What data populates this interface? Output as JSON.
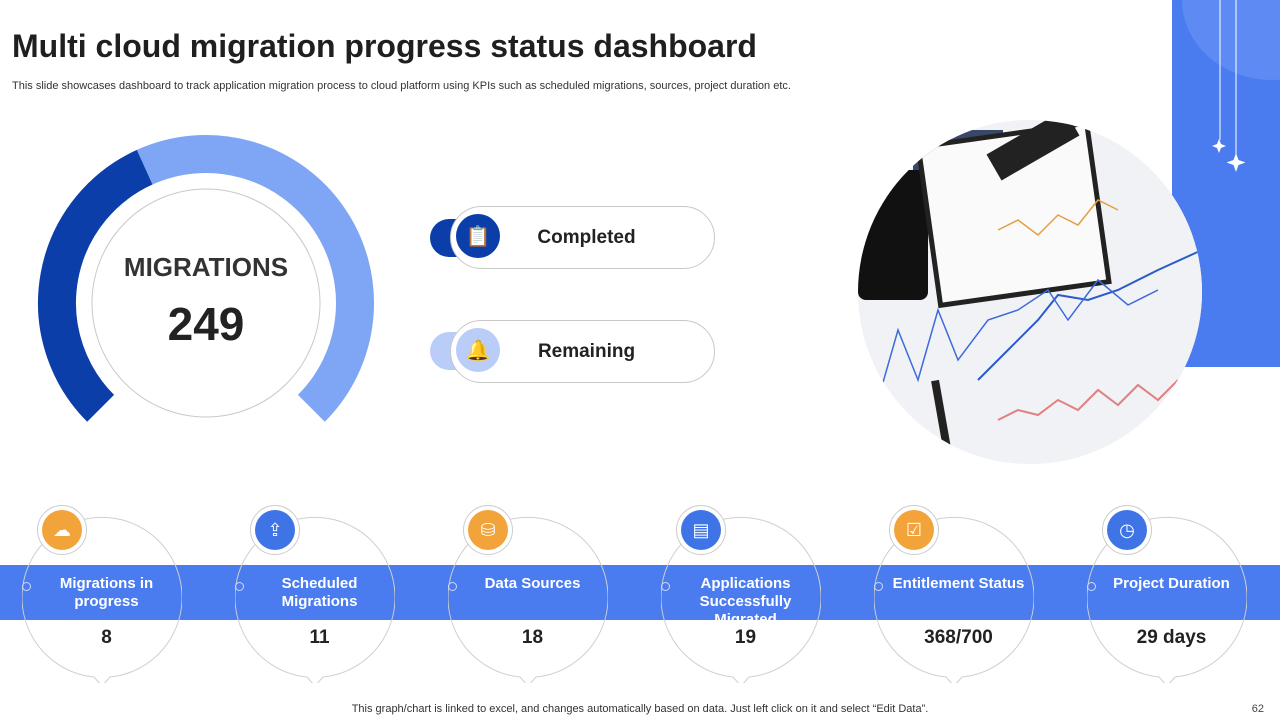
{
  "header": {
    "title": "Multi cloud migration progress status dashboard",
    "subtitle": "This slide showcases dashboard to track application migration process to cloud platform using KPIs such as scheduled migrations, sources, project duration etc."
  },
  "gauge": {
    "label": "MIGRATIONS",
    "total": "249",
    "completed_fraction": 0.41,
    "colors": {
      "completed": "#0b3ea8",
      "remaining": "#7fa5f5"
    }
  },
  "legend": [
    {
      "label": "Completed",
      "icon": "document-check-icon",
      "color": "#0b3ea8"
    },
    {
      "label": "Remaining",
      "icon": "bell-chat-icon",
      "color": "#b9cdf8"
    }
  ],
  "kpis": [
    {
      "label": "Migrations in progress",
      "value": "8",
      "icon": "cloud-laptop-icon",
      "color": "#f2a33a"
    },
    {
      "label": "Scheduled Migrations",
      "value": "11",
      "icon": "cloud-upload-icon",
      "color": "#3f74e6"
    },
    {
      "label": "Data Sources",
      "value": "18",
      "icon": "database-gear-icon",
      "color": "#f2a33a"
    },
    {
      "label": "Applications Successfully Migrated",
      "value": "19",
      "icon": "app-window-icon",
      "color": "#3f74e6"
    },
    {
      "label": "Entitlement Status",
      "value": "368/700",
      "icon": "checklist-icon",
      "color": "#f2a33a"
    },
    {
      "label": "Project Duration",
      "value": "29 days",
      "icon": "calendar-clock-icon",
      "color": "#3f74e6"
    }
  ],
  "footer": {
    "note": "This graph/chart is linked to excel,  and changes automatically based on data. Just left click on it and select “Edit Data”.",
    "page": "62"
  },
  "colors": {
    "accent": "#4a7cf0"
  }
}
